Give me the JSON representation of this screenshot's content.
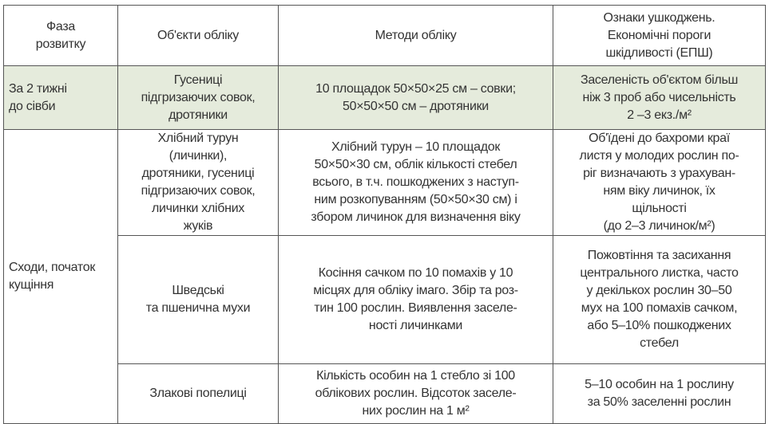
{
  "table": {
    "headers": [
      "Фаза\nрозвитку",
      "Об'єкти обліку",
      "Методи обліку",
      "Ознаки ушкоджень.\nЕкономічні пороги\nшкідливості (ЕПШ)"
    ],
    "row1": {
      "phase": "За 2 тижні\nдо сівби",
      "object": "Гусениці\nпідгризаючих совок,\nдротяники",
      "method": "10 площадок 50×50×25 см – совки;\n50×50×50 см – дротяники",
      "threshold": "Заселеність об'єктом більш\nніж 3 проб або чисельність\n2 –3 екз./м²"
    },
    "phase2": "Сходи, початок\nкущіння",
    "row2": {
      "object": "Хлібний турун\n(личинки),\nдротяники, гусениці\nпідгризаючих совок,\nличинки хлібних\nжуків",
      "method": "Хлібний турун – 10 площадок\n50×50×30 см, облік кількості стебел\nвсього, в т.ч. пошкоджених з наступ-\nним розкопуванням (50×50×30 см) і\nзбором личинок для визначення віку",
      "threshold": "Об'їдені до бахроми краї\nлистя у молодих рослин по-\nріг визначають з урахуван-\nням віку личинок, їх\nщільності\n(до 2–3 личинок/м²)"
    },
    "row3": {
      "object": "Шведські\nта пшенична мухи",
      "method": "Косіння сачком по 10 помахів у 10\nмісцях для обліку імаго. Збір та роз-\nтин 100 рослин. Виявлення заселе-\nності личинками",
      "threshold": "Пожовтіння та засихання\nцентрального листка, часто\nу декількох рослин 30–50\nмух на 100 помахів сачком,\nабо 5–10% пошкоджених\nстебел"
    },
    "row4": {
      "object": "Злакові попелиці",
      "method": "Кількість особин на 1 стебло зі 100\nоблікових рослин. Відсоток заселе-\nних рослин на 1 м²",
      "threshold": "5–10 особин на 1 рослину\nза 50% заселенні рослин"
    },
    "colors": {
      "highlight_row": "#e5ebdc",
      "border": "#555555"
    }
  }
}
